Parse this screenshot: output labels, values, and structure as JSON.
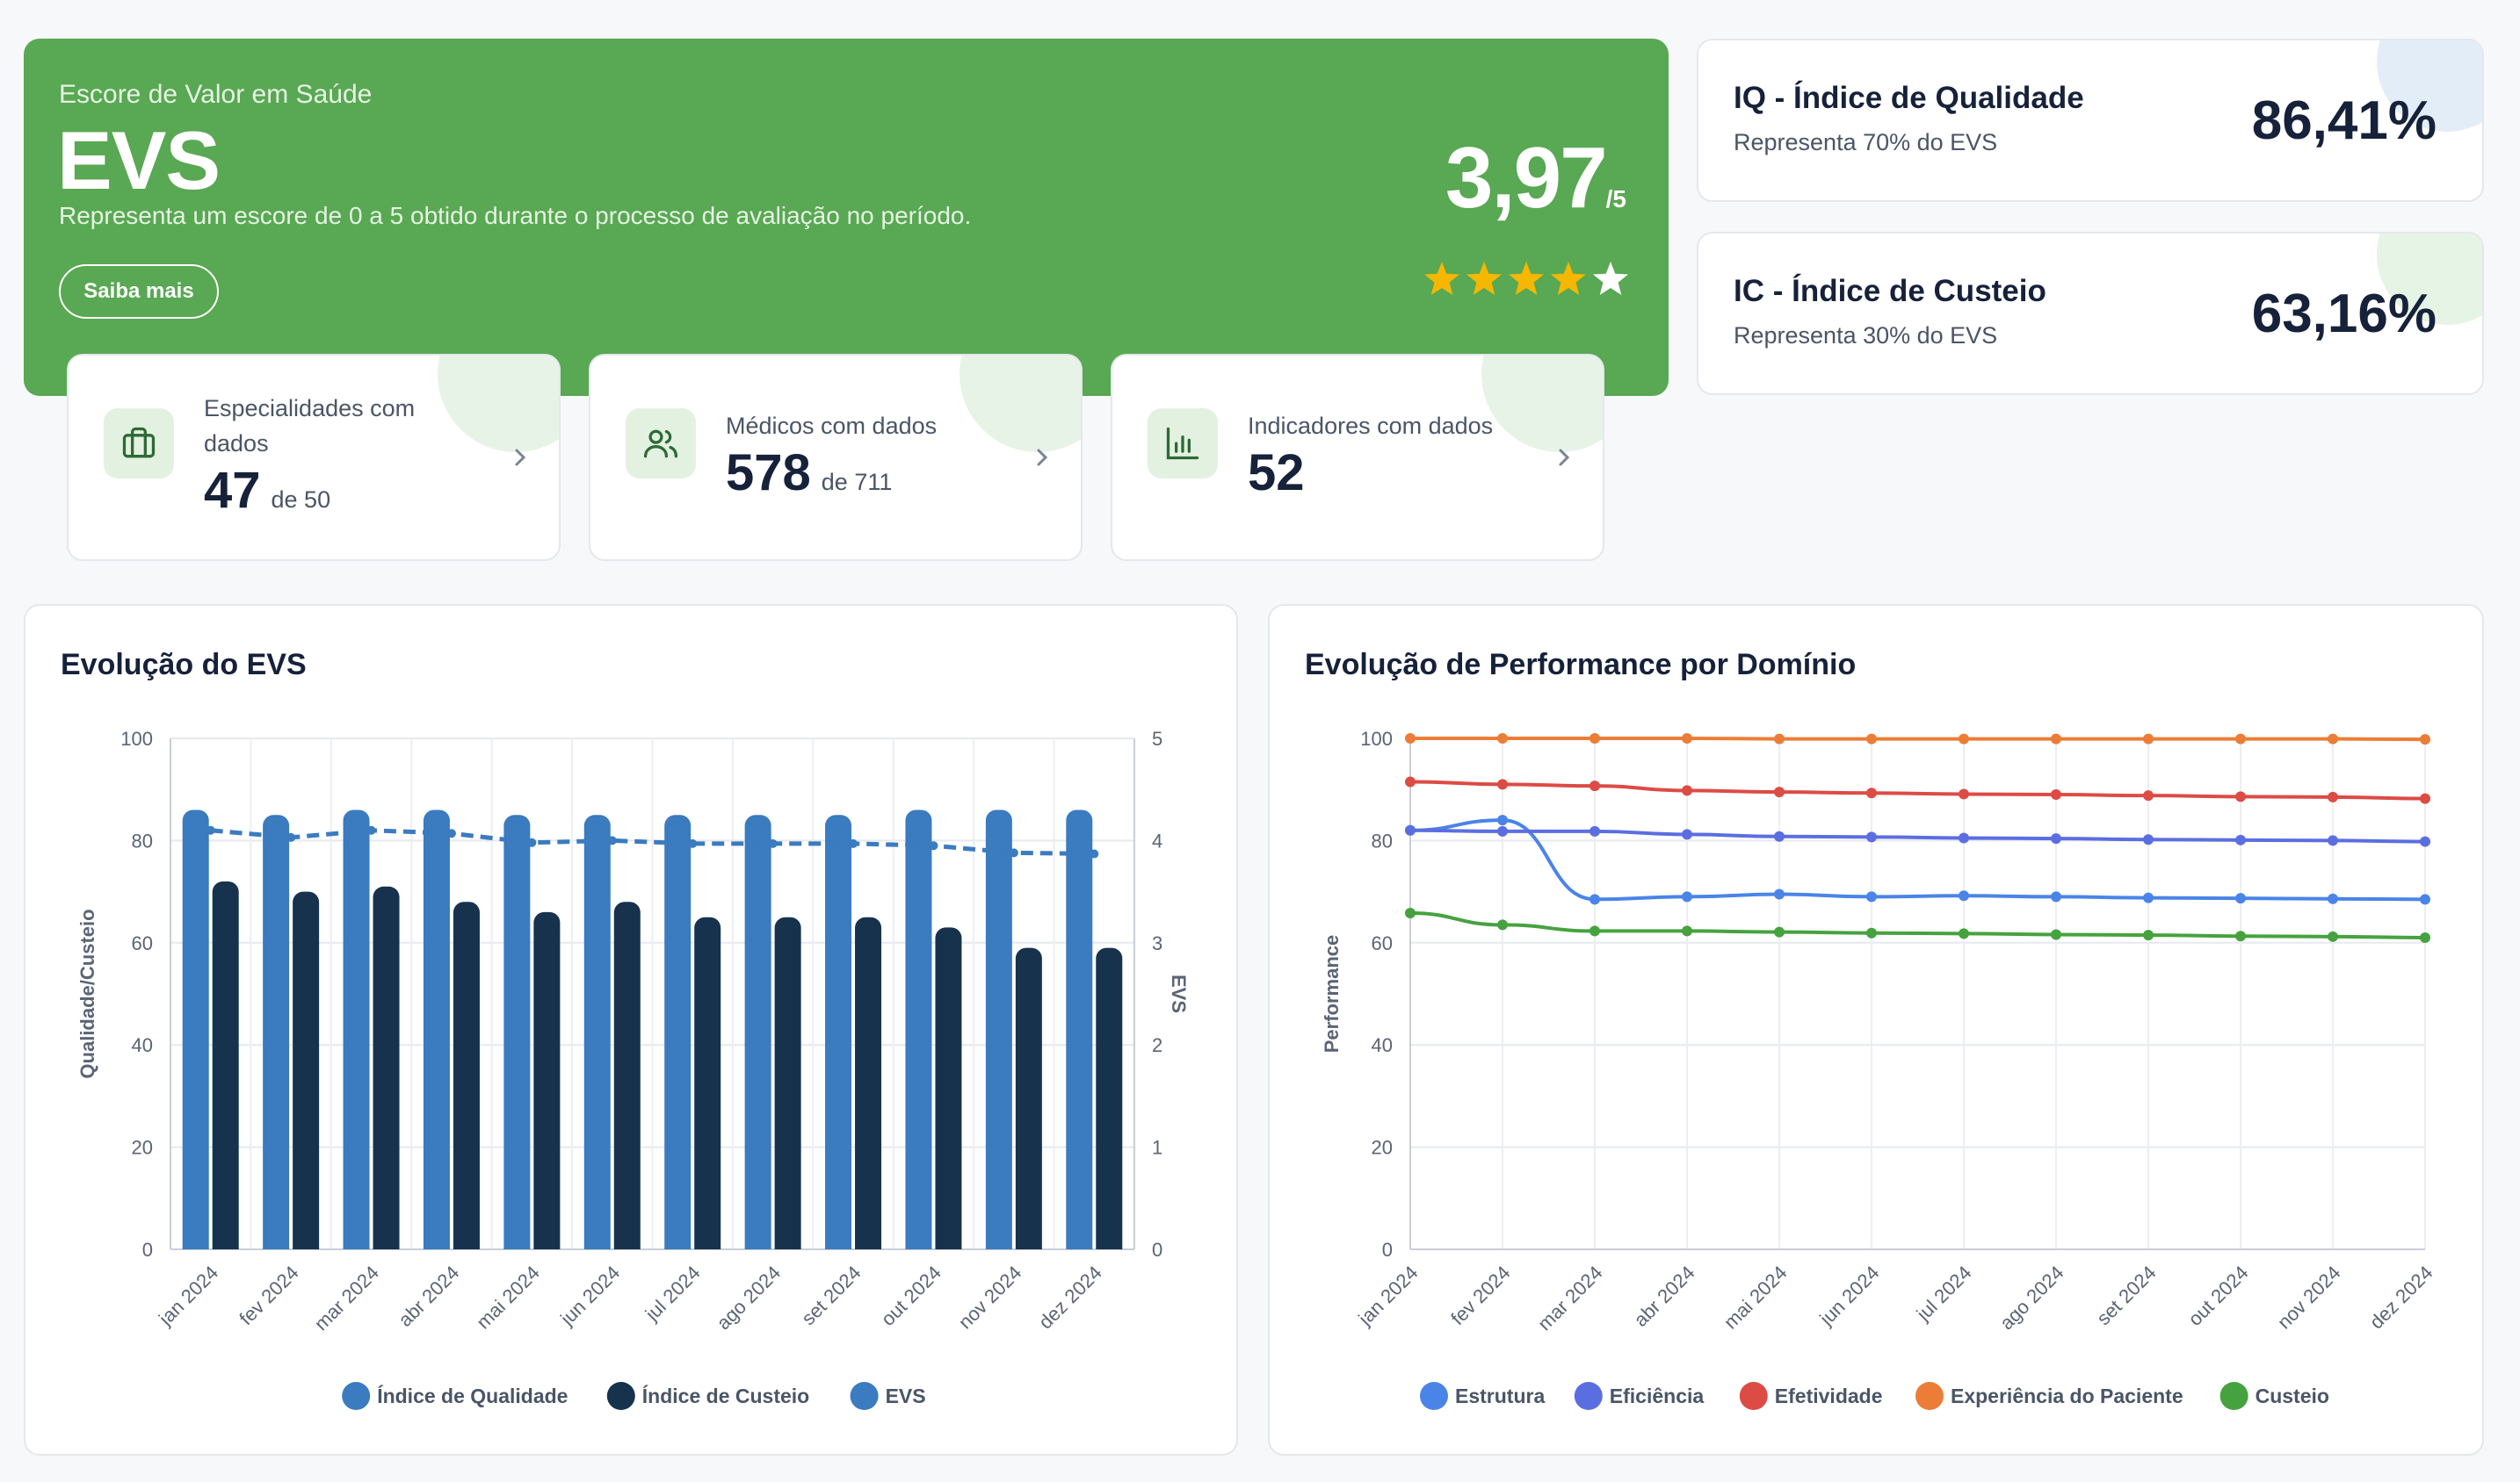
{
  "hero": {
    "eyebrow": "Escore de Valor em Saúde",
    "title": "EVS",
    "description": "Representa um escore de 0 a 5 obtido durante o processo de avaliação no período.",
    "button": "Saiba mais",
    "score": "3,97",
    "score_max": "/5",
    "stars_filled": 4,
    "stars_total": 5,
    "star_color": "#f5b700"
  },
  "stats": [
    {
      "label": "Especialidades com dados",
      "value": "47",
      "of": "de 50",
      "icon": "briefcase-icon"
    },
    {
      "label": "Médicos com dados",
      "value": "578",
      "of": "de 711",
      "icon": "users-icon"
    },
    {
      "label": "Indicadores com dados",
      "value": "52",
      "of": "",
      "icon": "bar-chart-icon"
    }
  ],
  "indices": [
    {
      "title": "IQ - Índice de Qualidade",
      "subtitle": "Representa 70% do EVS",
      "value": "86,41%",
      "accent": "#e3edf8"
    },
    {
      "title": "IC - Índice de Custeio",
      "subtitle": "Representa 30% do EVS",
      "value": "63,16%",
      "accent": "#e5f4e4"
    }
  ],
  "charts": {
    "evs_title": "Evolução do EVS",
    "perf_title": "Evolução de Performance por Domínio"
  },
  "chart_data": [
    {
      "type": "bar",
      "title": "Evolução do EVS",
      "categories": [
        "jan 2024",
        "fev 2024",
        "mar 2024",
        "abr 2024",
        "mai 2024",
        "jun 2024",
        "jul 2024",
        "ago 2024",
        "set 2024",
        "out 2024",
        "nov 2024",
        "dez 2024"
      ],
      "ylabel": "Qualidade/Custeio",
      "y2label": "EVS",
      "ylim": [
        0,
        100
      ],
      "y2lim": [
        0,
        5
      ],
      "yticks": [
        0,
        20,
        40,
        60,
        80,
        100
      ],
      "y2ticks": [
        0,
        1,
        2,
        3,
        4,
        5
      ],
      "grid": true,
      "legend": "bottom",
      "series": [
        {
          "name": "Índice de Qualidade",
          "kind": "bar",
          "axis": "left",
          "color": "#3b7bbf",
          "values": [
            86,
            85,
            86,
            86,
            85,
            85,
            85,
            85,
            85,
            86,
            86,
            86
          ]
        },
        {
          "name": "Índice de Custeio",
          "kind": "bar",
          "axis": "left",
          "color": "#17324d",
          "values": [
            72,
            70,
            71,
            68,
            66,
            68,
            65,
            65,
            65,
            63,
            59,
            59
          ]
        },
        {
          "name": "EVS",
          "kind": "line-dashed",
          "axis": "right",
          "color": "#3b7bbf",
          "values": [
            4.1,
            4.03,
            4.1,
            4.07,
            3.98,
            4.0,
            3.97,
            3.97,
            3.97,
            3.95,
            3.88,
            3.87
          ]
        }
      ]
    },
    {
      "type": "line",
      "title": "Evolução de Performance por Domínio",
      "categories": [
        "jan 2024",
        "fev 2024",
        "mar 2024",
        "abr 2024",
        "mai 2024",
        "jun 2024",
        "jul 2024",
        "ago 2024",
        "set 2024",
        "out 2024",
        "nov 2024",
        "dez 2024"
      ],
      "ylabel": "Performance",
      "ylim": [
        0,
        100
      ],
      "yticks": [
        0,
        20,
        40,
        60,
        80,
        100
      ],
      "grid": true,
      "legend": "bottom",
      "series": [
        {
          "name": "Estrutura",
          "color": "#4a84e8",
          "values": [
            82,
            84,
            68.5,
            69,
            69.5,
            69,
            69.2,
            69,
            68.8,
            68.7,
            68.6,
            68.5
          ]
        },
        {
          "name": "Eficiência",
          "color": "#5b6ee1",
          "values": [
            82,
            81.8,
            81.8,
            81.2,
            80.8,
            80.7,
            80.5,
            80.4,
            80.2,
            80.1,
            80,
            79.8
          ]
        },
        {
          "name": "Efetividade",
          "color": "#dd4b45",
          "values": [
            91.5,
            91,
            90.7,
            89.8,
            89.5,
            89.3,
            89.1,
            89,
            88.8,
            88.6,
            88.5,
            88.2
          ]
        },
        {
          "name": "Experiência do Paciente",
          "color": "#ec7d36",
          "values": [
            100,
            100,
            100,
            100,
            99.9,
            99.9,
            99.9,
            99.9,
            99.9,
            99.9,
            99.9,
            99.8
          ]
        },
        {
          "name": "Custeio",
          "color": "#46a23f",
          "values": [
            65.8,
            63.5,
            62.3,
            62.3,
            62.1,
            61.9,
            61.8,
            61.6,
            61.5,
            61.3,
            61.2,
            61
          ]
        }
      ]
    }
  ]
}
